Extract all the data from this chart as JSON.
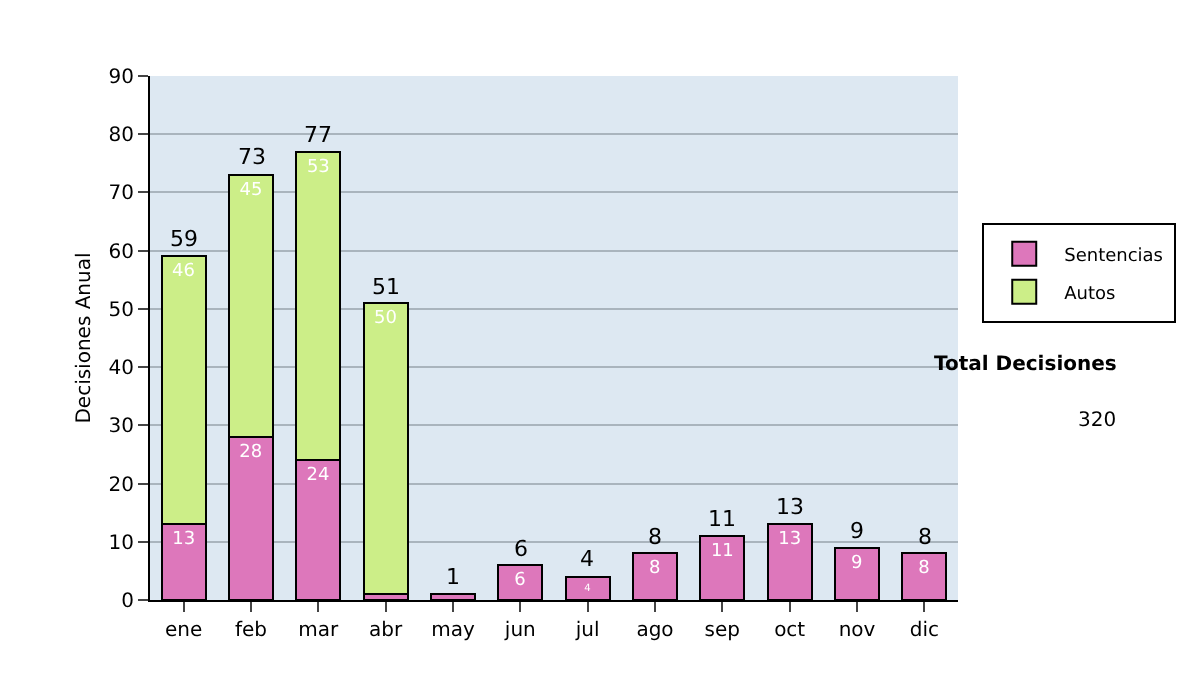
{
  "chart_data": {
    "type": "bar",
    "stacked": true,
    "ylabel": "Decisiones Anual",
    "categories": [
      "ene",
      "feb",
      "mar",
      "abr",
      "may",
      "jun",
      "jul",
      "ago",
      "sep",
      "oct",
      "nov",
      "dic"
    ],
    "series": [
      {
        "name": "Sentencias",
        "color": "#dd77bb",
        "values": [
          13,
          28,
          24,
          1,
          1,
          6,
          4,
          8,
          11,
          13,
          9,
          8
        ],
        "value_labels": [
          "13",
          "28",
          "24",
          null,
          null,
          "6",
          "4",
          "8",
          "11",
          "13",
          "9",
          "8"
        ]
      },
      {
        "name": "Autos",
        "color": "#ccee88",
        "values": [
          46,
          45,
          53,
          50,
          null,
          null,
          null,
          null,
          null,
          null,
          null,
          null
        ],
        "value_labels": [
          "46",
          "45",
          "53",
          "50",
          null,
          null,
          null,
          null,
          null,
          null,
          null,
          null
        ]
      }
    ],
    "totals": [
      "59",
      "73",
      "77",
      "51",
      "1",
      "6",
      "4",
      "8",
      "11",
      "13",
      "9",
      "8"
    ],
    "ylim": [
      0,
      90
    ],
    "yticks": [
      0,
      10,
      20,
      30,
      40,
      50,
      60,
      70,
      80,
      90
    ],
    "grid": "y",
    "legend": "right",
    "annotations": [
      "Total Decisiones",
      "320"
    ]
  }
}
